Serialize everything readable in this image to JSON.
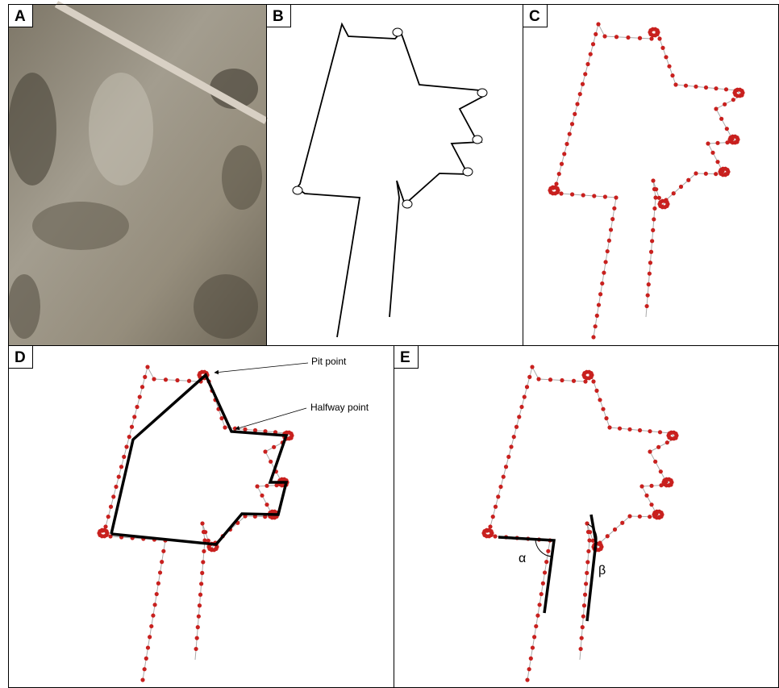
{
  "panels": [
    {
      "label": "A"
    },
    {
      "label": "B"
    },
    {
      "label": "C"
    },
    {
      "label": "D"
    },
    {
      "label": "E"
    }
  ],
  "annotations": {
    "pit_point": "Pit point",
    "halfway_point": "Halfway point",
    "alpha": "α",
    "beta": "β"
  }
}
